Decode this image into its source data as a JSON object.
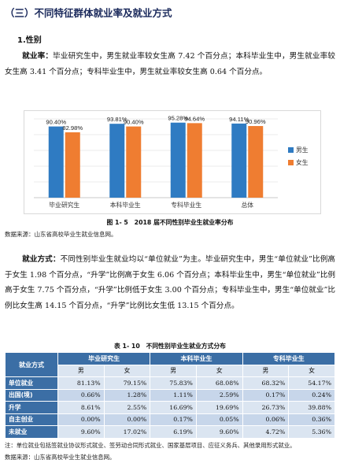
{
  "section_title": "（三）不同特征群体就业率及就业方式",
  "subsection_title": "1.性别",
  "para1": {
    "lead": "就业率：",
    "text": "毕业研究生中，男生就业率较女生高 7.42 个百分点；本科毕业生中，男生就业率较女生高 3.41 个百分点；专科毕业生中，男生就业率较女生高 0.64 个百分点。"
  },
  "figure_caption": "图 1- 5　2018 届不同性别毕业生就业率分布",
  "figure_source": "数据来源：山东省高校毕业生就业信息网。",
  "chart_data": {
    "type": "bar",
    "categories": [
      "毕业研究生",
      "本科毕业生",
      "专科毕业生",
      "总体"
    ],
    "series": [
      {
        "name": "男生",
        "values": [
          90.4,
          93.81,
          95.28,
          94.11
        ],
        "labels": [
          "90.40%",
          "93.81%",
          "95.28%",
          "94.11%"
        ],
        "color": "#2f7bc2"
      },
      {
        "name": "女生",
        "values": [
          82.98,
          90.4,
          94.64,
          90.96
        ],
        "labels": [
          "82.98%",
          "90.40%",
          "94.64%",
          "90.96%"
        ],
        "color": "#ef7d31"
      }
    ],
    "ylim": [
      0,
      100
    ],
    "grid": true,
    "legend_position": "right"
  },
  "para2": {
    "lead": "就业方式：",
    "text": "不同性别毕业生就业均以“单位就业”为主。毕业研究生中，男生“单位就业”比例高于女生 1.98 个百分点，“升学”比例高于女生 6.06 个百分点；本科毕业生中，男生“单位就业”比例高于女生 7.75 个百分点，“升学”比例低于女生 3.00 个百分点；专科毕业生中，男生“单位就业”比例比女生高 14.15 个百分点，“升学”比例比女生低 13.15 个百分点。"
  },
  "table_caption": "表 1- 10　不同性别毕业生就业方式分布",
  "table": {
    "corner": "就业方式",
    "groups": [
      "毕业研究生",
      "本科毕业生",
      "专科毕业生"
    ],
    "subheaders": [
      "男",
      "女",
      "男",
      "女",
      "男",
      "女"
    ],
    "rows": [
      {
        "label": "单位就业",
        "cells": [
          "81.13%",
          "79.15%",
          "75.83%",
          "68.08%",
          "68.32%",
          "54.17%"
        ]
      },
      {
        "label": "出国(境)",
        "cells": [
          "0.66%",
          "1.28%",
          "1.11%",
          "2.59%",
          "0.17%",
          "0.24%"
        ]
      },
      {
        "label": "升学",
        "cells": [
          "8.61%",
          "2.55%",
          "16.69%",
          "19.69%",
          "26.73%",
          "39.88%"
        ]
      },
      {
        "label": "自主创业",
        "cells": [
          "0.00%",
          "0.00%",
          "0.17%",
          "0.05%",
          "0.06%",
          "0.36%"
        ]
      },
      {
        "label": "未就业",
        "cells": [
          "9.60%",
          "17.02%",
          "6.19%",
          "9.60%",
          "4.72%",
          "5.36%"
        ]
      }
    ]
  },
  "table_note": "注：单位就业包括签就业协议形式就业、签劳动合同形式就业、国家基层项目、应征义务兵、其他录用形式就业。",
  "table_source": "数据来源：山东省高校毕业生就业信息网。"
}
